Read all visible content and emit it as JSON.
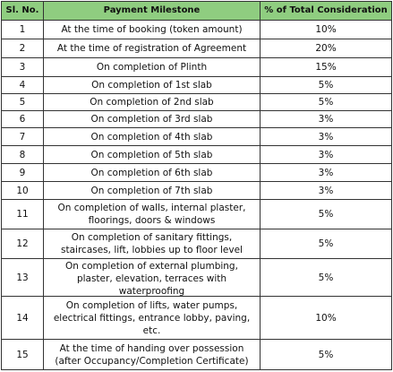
{
  "table": {
    "header": [
      "Sl. No.",
      "Payment Milestone",
      "% of Total Consideration"
    ],
    "rows": [
      [
        "1",
        "At the time of booking (token amount)",
        "10%"
      ],
      [
        "2",
        "At the time of registration of Agreement",
        "20%"
      ],
      [
        "3",
        "On completion of Plinth",
        "15%"
      ],
      [
        "4",
        "On completion of 1st slab",
        "5%"
      ],
      [
        "5",
        "On completion of 2nd slab",
        "5%"
      ],
      [
        "6",
        "On completion of 3rd slab",
        "3%"
      ],
      [
        "7",
        "On completion of 4th slab",
        "3%"
      ],
      [
        "8",
        "On completion of 5th slab",
        "3%"
      ],
      [
        "9",
        "On completion of 6th slab",
        "3%"
      ],
      [
        "10",
        "On completion of 7th slab",
        "3%"
      ],
      [
        "11",
        "On completion of walls, internal plaster, floorings, doors & windows",
        "5%"
      ],
      [
        "12",
        "On completion of sanitary fittings, staircases, lift, lobbies up to floor level",
        "5%"
      ],
      [
        "13",
        "On completion of external plumbing, plaster, elevation, terraces with waterproofing",
        "5%"
      ],
      [
        "14",
        "On completion of lifts, water pumps, electrical fittings, entrance lobby, paving, etc.",
        "10%"
      ],
      [
        "15",
        "At the time of handing over possession (after Occupancy/Completion Certificate)",
        "5%"
      ]
    ]
  }
}
